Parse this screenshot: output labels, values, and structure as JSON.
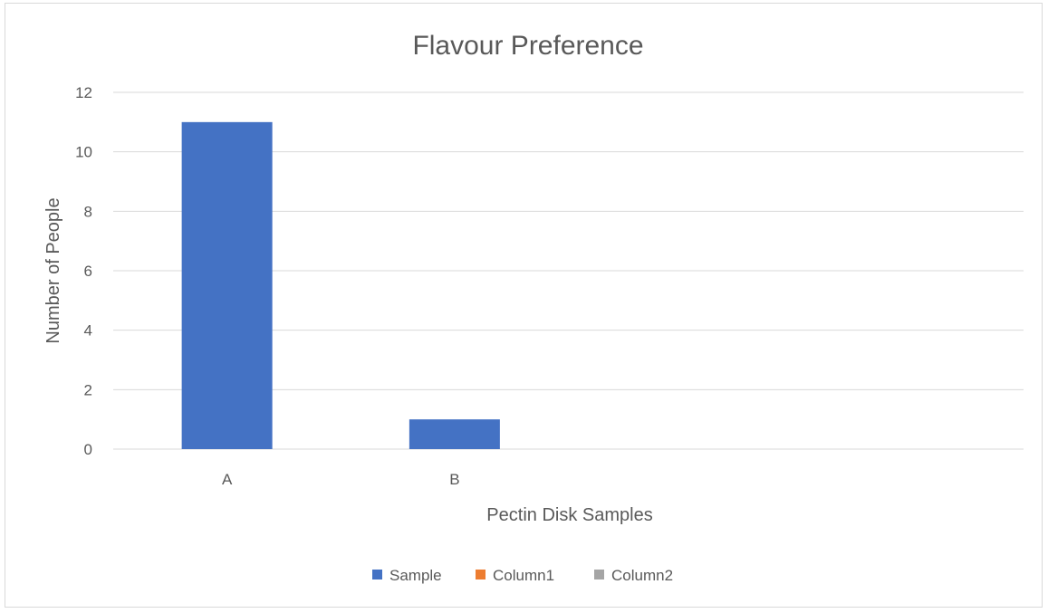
{
  "chart_data": {
    "type": "bar",
    "title": "Flavour Preference",
    "xlabel": "Pectin Disk Samples",
    "ylabel": "Number of People",
    "categories": [
      "A",
      "B",
      "",
      ""
    ],
    "series": [
      {
        "name": "Sample",
        "values": [
          11,
          1,
          null,
          null
        ],
        "color": "#4472C4"
      },
      {
        "name": "Column1",
        "values": [
          null,
          null,
          null,
          null
        ],
        "color": "#ED7D31"
      },
      {
        "name": "Column2",
        "values": [
          null,
          null,
          null,
          null
        ],
        "color": "#A5A5A5"
      }
    ],
    "ylim": [
      0,
      12
    ],
    "yticks": [
      "0",
      "2",
      "4",
      "6",
      "8",
      "10",
      "12"
    ],
    "grid": true,
    "legend_position": "bottom"
  }
}
